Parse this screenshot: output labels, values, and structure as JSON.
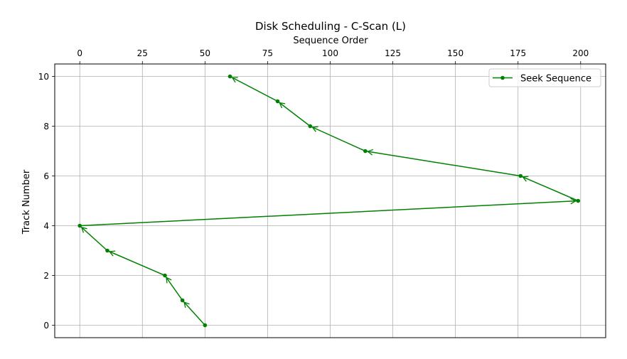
{
  "chart_data": {
    "type": "line",
    "title": "Disk Scheduling - C-Scan (L)",
    "xlabel": "Sequence Order",
    "ylabel": "Track Number",
    "x_axis_position": "top",
    "y_axis_inverted": true,
    "xlim": [
      -10,
      210
    ],
    "ylim": [
      10.5,
      -0.5
    ],
    "xticks": [
      0,
      25,
      50,
      75,
      100,
      125,
      150,
      175,
      200
    ],
    "yticks": [
      0,
      2,
      4,
      6,
      8,
      10
    ],
    "grid": true,
    "legend": "top-right",
    "series": [
      {
        "name": "Seek Sequence",
        "color": "#008000",
        "marker": "dot",
        "arrows": true,
        "points": [
          {
            "x": 50,
            "y": 0
          },
          {
            "x": 41,
            "y": 1
          },
          {
            "x": 34,
            "y": 2
          },
          {
            "x": 11,
            "y": 3
          },
          {
            "x": 0,
            "y": 4
          },
          {
            "x": 199,
            "y": 5
          },
          {
            "x": 176,
            "y": 6
          },
          {
            "x": 114,
            "y": 7
          },
          {
            "x": 92,
            "y": 8
          },
          {
            "x": 79,
            "y": 9
          },
          {
            "x": 60,
            "y": 10
          }
        ]
      }
    ]
  }
}
